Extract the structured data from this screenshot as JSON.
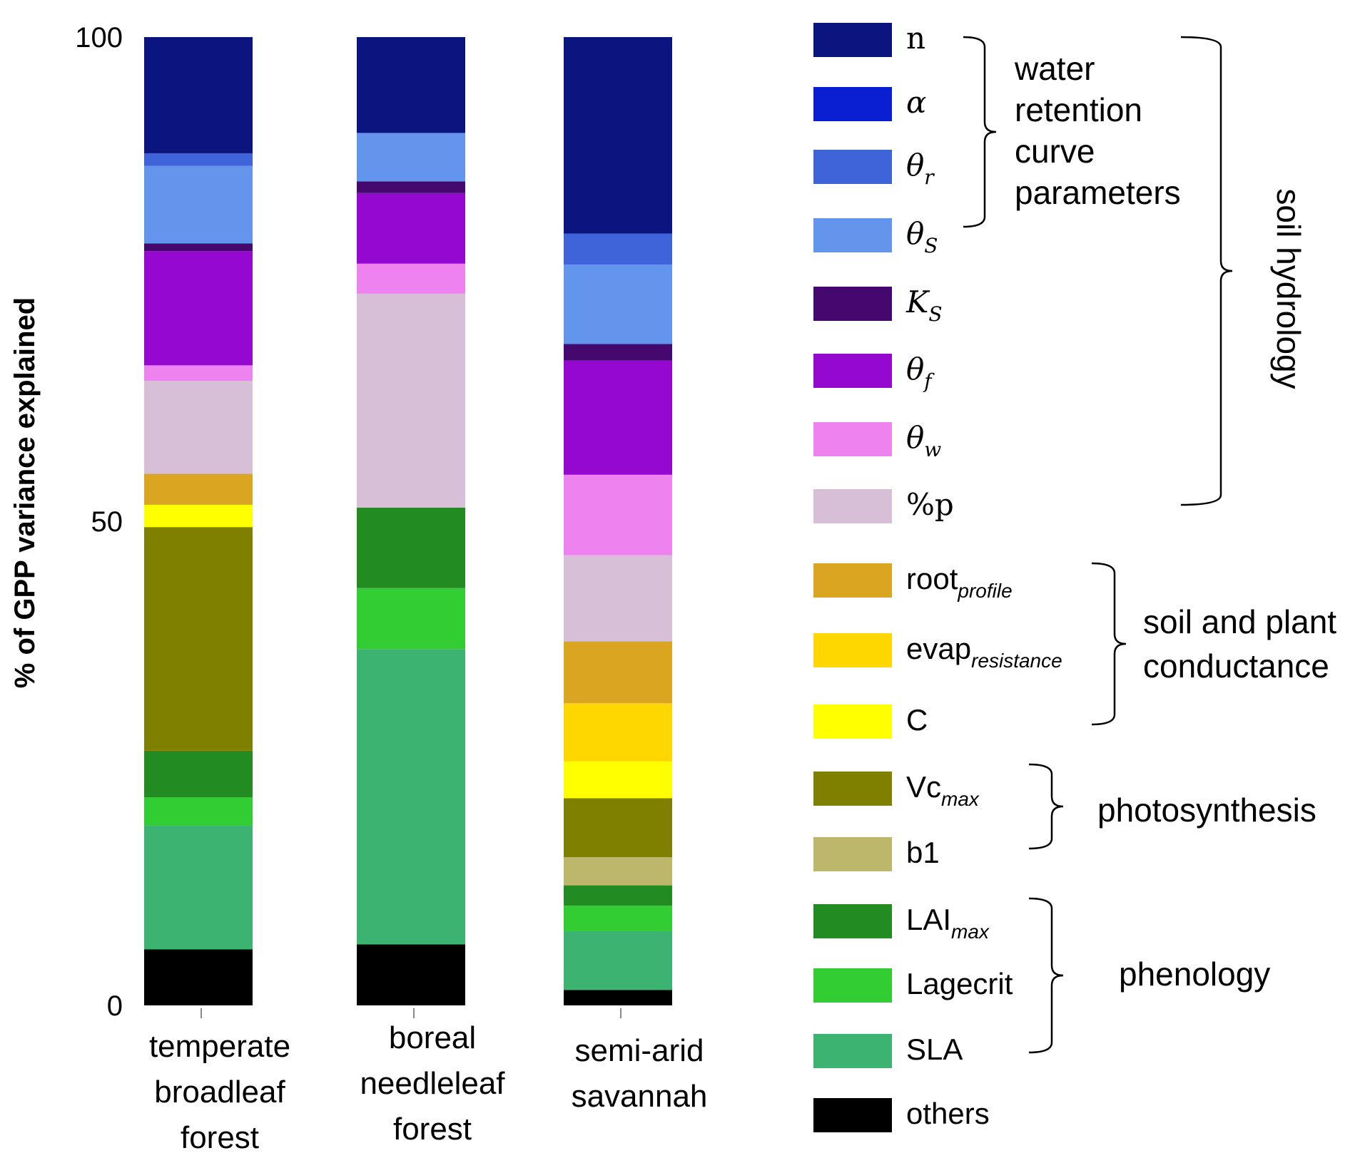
{
  "chart_data": {
    "type": "bar",
    "stacked": true,
    "ylabel": "% of GPP variance explained",
    "ylim": [
      0,
      100
    ],
    "yticks": [
      "0",
      "50",
      "100"
    ],
    "categories": [
      [
        "temperate",
        "broadleaf",
        "forest"
      ],
      [
        "boreal",
        "needleleaf",
        "forest"
      ],
      [
        "semi-arid",
        "savannah"
      ]
    ],
    "colors": {
      "n": "#0a1580",
      "alpha": "#0a1ed2",
      "theta_r": "#3f63d8",
      "theta_s": "#6495ed",
      "K_s": "#45086f",
      "theta_f": "#9408d0",
      "theta_w": "#ee82ee",
      "p": "#d8bfd8",
      "root_profile": "#daa520",
      "evap_resistance": "#ffd700",
      "C": "#ffff00",
      "Vcmax": "#808000",
      "b1": "#bdb76b",
      "LAImax": "#228b22",
      "Lagecrit": "#32cd32",
      "SLA": "#3cb371",
      "others": "#000000"
    },
    "series": [
      {
        "key": "others",
        "values": [
          5.8,
          6.3,
          1.6
        ]
      },
      {
        "key": "SLA",
        "values": [
          12.8,
          30.5,
          6.1
        ]
      },
      {
        "key": "Lagecrit",
        "values": [
          2.9,
          6.3,
          2.6
        ]
      },
      {
        "key": "LAImax",
        "values": [
          4.8,
          8.3,
          2.1
        ]
      },
      {
        "key": "b1",
        "values": [
          0,
          0,
          2.9
        ]
      },
      {
        "key": "Vcmax",
        "values": [
          23.1,
          0,
          6.1
        ]
      },
      {
        "key": "C",
        "values": [
          2.3,
          0,
          3.8
        ]
      },
      {
        "key": "evap_resistance",
        "values": [
          0,
          0,
          6.0
        ]
      },
      {
        "key": "root_profile",
        "values": [
          3.2,
          0,
          6.4
        ]
      },
      {
        "key": "p",
        "values": [
          9.6,
          22.1,
          8.9
        ]
      },
      {
        "key": "theta_w",
        "values": [
          1.6,
          3.1,
          8.3
        ]
      },
      {
        "key": "theta_f",
        "values": [
          11.8,
          7.3,
          11.8
        ]
      },
      {
        "key": "K_s",
        "values": [
          0.8,
          1.2,
          1.7
        ]
      },
      {
        "key": "theta_s",
        "values": [
          8.0,
          5.0,
          8.2
        ]
      },
      {
        "key": "theta_r",
        "values": [
          1.3,
          0,
          3.2
        ]
      },
      {
        "key": "alpha",
        "values": [
          0,
          0,
          0
        ]
      },
      {
        "key": "n",
        "values": [
          12.0,
          9.9,
          20.3
        ]
      }
    ]
  },
  "legend": [
    {
      "key": "n",
      "label": "n",
      "sub": "",
      "style": "serif"
    },
    {
      "key": "alpha",
      "label": "α",
      "sub": "",
      "style": "math"
    },
    {
      "key": "theta_r",
      "label": "θ",
      "sub": "r",
      "style": "math"
    },
    {
      "key": "theta_s",
      "label": "θ",
      "sub": "S",
      "style": "math"
    },
    {
      "key": "K_s",
      "label": "K",
      "sub": "S",
      "style": "math"
    },
    {
      "key": "theta_f",
      "label": "θ",
      "sub": "f",
      "style": "math"
    },
    {
      "key": "theta_w",
      "label": "θ",
      "sub": "w",
      "style": "math"
    },
    {
      "key": "p",
      "label": "%p",
      "sub": "",
      "style": "serif"
    },
    {
      "key": "root_profile",
      "label": "root",
      "sub": "profile",
      "style": "sans"
    },
    {
      "key": "evap_resistance",
      "label": "evap",
      "sub": "resistance",
      "style": "sans"
    },
    {
      "key": "C",
      "label": "C",
      "sub": "",
      "style": "sans"
    },
    {
      "key": "Vcmax",
      "label": "Vc",
      "sub": "max",
      "style": "sans"
    },
    {
      "key": "b1",
      "label": "b1",
      "sub": "",
      "style": "sans"
    },
    {
      "key": "LAImax",
      "label": "LAI",
      "sub": "max",
      "style": "sans"
    },
    {
      "key": "Lagecrit",
      "label": "Lagecrit",
      "sub": "",
      "style": "sans"
    },
    {
      "key": "SLA",
      "label": "SLA",
      "sub": "",
      "style": "sans"
    },
    {
      "key": "others",
      "label": "others",
      "sub": "",
      "style": "sans"
    }
  ],
  "groups": {
    "water_retention": [
      "water",
      "retention",
      "curve",
      "parameters"
    ],
    "soil_hydrology": "soil hydrology",
    "soil_plant": [
      "soil and plant",
      "conductance"
    ],
    "photosynthesis": "photosynthesis",
    "phenology": "phenology"
  }
}
